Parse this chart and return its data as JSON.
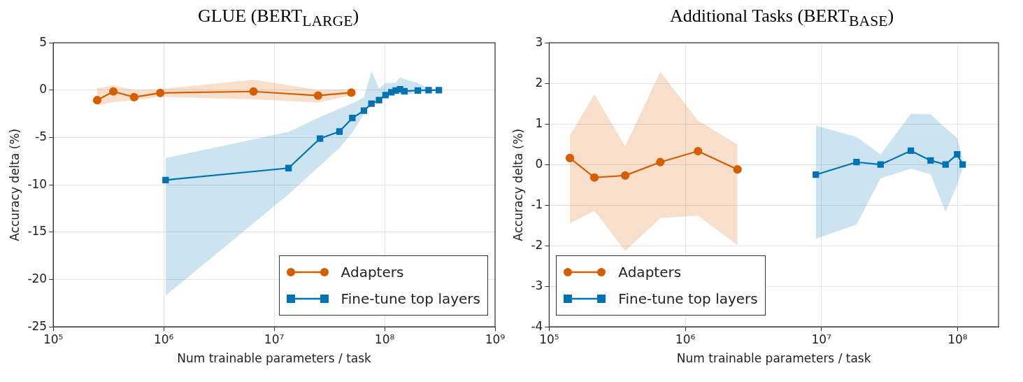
{
  "chart_data": [
    {
      "type": "line",
      "title": "GLUE (BERT$_{LARGE}$)",
      "xlabel": "Num trainable parameters / task",
      "ylabel": "Accuracy delta (%)",
      "log": "x",
      "grid": true,
      "legend": "bottom right",
      "xlim": [
        100000,
        1000000000
      ],
      "xticks": [
        {
          "value": 100000,
          "label": "10⁵"
        },
        {
          "value": 1000000,
          "label": "10⁶"
        },
        {
          "value": 10000000,
          "label": "10⁷"
        },
        {
          "value": 100000000,
          "label": "10⁸"
        },
        {
          "value": 1000000000,
          "label": "10⁹"
        }
      ],
      "ylim": [
        -25,
        5
      ],
      "yticks": [
        -25,
        -20,
        -15,
        -10,
        -5,
        0,
        5
      ],
      "series": [
        {
          "name": "Adapters",
          "color": "#d55e00",
          "marker": "circle",
          "x": [
            250000,
            350000,
            540000,
            930000,
            6500000,
            25000000,
            50000000
          ],
          "values": [
            -1.06,
            -0.14,
            -0.74,
            -0.29,
            -0.14,
            -0.57,
            -0.26
          ],
          "lower": [
            -1.6,
            -1.26,
            -1.06,
            -0.7,
            -0.97,
            -1.3,
            -0.55
          ],
          "upper": [
            0.2,
            0.5,
            0.03,
            0.1,
            1.1,
            0.03,
            0.1
          ]
        },
        {
          "name": "Fine-tune top layers",
          "color": "#0072b2",
          "marker": "square",
          "x": [
            1040000,
            13500000,
            26000000,
            39000000,
            51000000,
            65000000,
            76000000,
            89000000,
            102000000,
            115000000,
            126000000,
            138000000,
            151000000,
            200000000,
            250000000,
            310000000
          ],
          "values": [
            -9.49,
            -8.23,
            -5.11,
            -4.37,
            -2.94,
            -2.17,
            -1.43,
            -1.06,
            -0.51,
            -0.23,
            -0.03,
            0.09,
            -0.11,
            -0.03,
            0,
            0
          ],
          "lower": [
            -21.7,
            -11,
            -7.97,
            -6.1,
            -4.5,
            -2.5,
            -1.26,
            -0.83,
            -0.6,
            -0.4,
            -0.26,
            -0.4,
            -0.5,
            -0.26,
            -0.1,
            0
          ],
          "upper": [
            -7.17,
            -4.4,
            -2.83,
            -1.97,
            -1.4,
            -0.77,
            2.0,
            0.17,
            0.74,
            0.77,
            0.8,
            1.34,
            1.17,
            0.74,
            0.17,
            0
          ]
        }
      ]
    },
    {
      "type": "line",
      "title": "Additional Tasks (BERT$_{BASE}$)",
      "xlabel": "Num trainable parameters / task",
      "ylabel": "Accuracy delta (%)",
      "log": "x",
      "grid": true,
      "legend": "bottom left",
      "xlim": [
        100000,
        200000000
      ],
      "xticks": [
        {
          "value": 100000,
          "label": "10⁵"
        },
        {
          "value": 1000000,
          "label": "10⁶"
        },
        {
          "value": 10000000,
          "label": "10⁷"
        },
        {
          "value": 100000000,
          "label": "10⁸"
        }
      ],
      "ylim": [
        -4,
        3
      ],
      "yticks": [
        -4,
        -3,
        -2,
        -1,
        0,
        1,
        2,
        3
      ],
      "series": [
        {
          "name": "Adapters",
          "color": "#d55e00",
          "marker": "circle",
          "x": [
            142000,
            215000,
            362000,
            655000,
            1240000,
            2420000
          ],
          "values": [
            0.16,
            -0.32,
            -0.27,
            0.06,
            0.33,
            -0.12
          ],
          "lower": [
            -1.45,
            -1.14,
            -2.13,
            -1.32,
            -1.26,
            -1.99
          ],
          "upper": [
            0.72,
            1.73,
            0.45,
            2.29,
            1.08,
            0.49
          ]
        },
        {
          "name": "Fine-tune top layers",
          "color": "#0072b2",
          "marker": "square",
          "x": [
            9100000,
            18100000,
            27200000,
            45400000,
            63400000,
            81700000,
            99300000,
            109000000
          ],
          "values": [
            -0.25,
            0.06,
            0,
            0.34,
            0.1,
            0,
            0.25,
            0
          ],
          "lower": [
            -1.83,
            -1.48,
            -0.34,
            -0.1,
            -0.24,
            -1.17,
            -0.5,
            -0.1
          ],
          "upper": [
            0.96,
            0.68,
            0.25,
            1.25,
            1.24,
            0.9,
            0.66,
            0.15
          ]
        }
      ]
    }
  ]
}
